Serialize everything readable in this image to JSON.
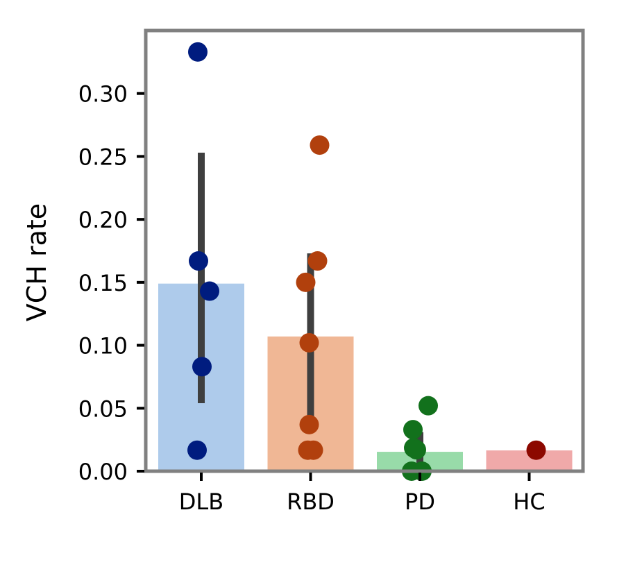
{
  "chart_data": {
    "type": "bar",
    "title": "",
    "xlabel": "",
    "ylabel": "VCH rate",
    "ylim": [
      0,
      0.35
    ],
    "yticks": [
      "0.00",
      "0.05",
      "0.10",
      "0.15",
      "0.20",
      "0.25",
      "0.30"
    ],
    "grid": false,
    "categories": [
      "DLB",
      "RBD",
      "PD",
      "HC"
    ],
    "values": [
      0.149,
      0.107,
      0.0154,
      0.0165
    ],
    "error_bars": [
      [
        0.054,
        0.253
      ],
      [
        0.037,
        0.173
      ],
      [
        0.0,
        0.031
      ],
      null
    ],
    "bar_colors": [
      "#aecbeb",
      "#f0b795",
      "#98dba9",
      "#f0a9a9"
    ],
    "point_colors": [
      "#001c7f",
      "#b1400d",
      "#12711c",
      "#8c0800"
    ],
    "error_color": "#3f3f3f",
    "points": [
      [
        0.333,
        0.167,
        0.143,
        0.083,
        0.0167
      ],
      [
        0.259,
        0.167,
        0.15,
        0.102,
        0.037,
        0.0167,
        0.0167
      ],
      [
        0.052,
        0.033,
        0.0185,
        0.017,
        0.0,
        0.0
      ],
      [
        0.0167
      ]
    ]
  }
}
